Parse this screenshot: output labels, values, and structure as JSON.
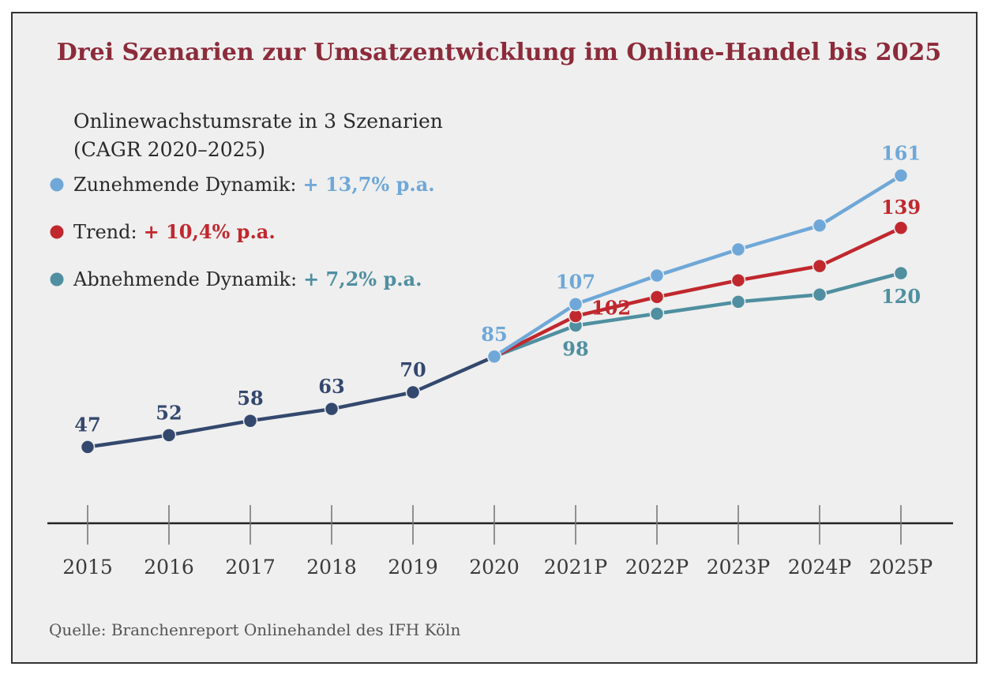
{
  "title": "Drei Szenarien zur Umsatzentwicklung im Online-Handel bis 2025",
  "subtitle_line1": "Onlinewachstumsrate in 3 Szenarien",
  "subtitle_line2": "(CAGR 2020–2025)",
  "source": "Quelle: Branchenreport Onlinehandel des IFH Köln",
  "legend": [
    {
      "label": "Zunehmende Dynamik:",
      "value": "+ 13,7% p.a.",
      "color": "#6fa8d8"
    },
    {
      "label": "Trend:",
      "value": "+ 10,4% p.a.",
      "color": "#c0282e"
    },
    {
      "label": "Abnehmende Dynamik:",
      "value": "+ 7,2% p.a.",
      "color": "#4f8fa0"
    }
  ],
  "chart_data": {
    "type": "line",
    "categories": [
      "2015",
      "2016",
      "2017",
      "2018",
      "2019",
      "2020",
      "2021P",
      "2022P",
      "2023P",
      "2024P",
      "2025P"
    ],
    "history": {
      "color": "#34486e",
      "values": [
        47,
        52,
        58,
        63,
        70,
        85
      ],
      "labels": [
        "47",
        "52",
        "58",
        "63",
        "70",
        "85"
      ]
    },
    "series": [
      {
        "name": "Zunehmende Dynamik",
        "color": "#6fa8d8",
        "values": [
          null,
          null,
          null,
          null,
          null,
          85,
          107,
          119,
          130,
          140,
          161
        ]
      },
      {
        "name": "Trend",
        "color": "#c0282e",
        "values": [
          null,
          null,
          null,
          null,
          null,
          85,
          102,
          110,
          117,
          123,
          139
        ]
      },
      {
        "name": "Abnehmende Dynamik",
        "color": "#4f8fa0",
        "values": [
          null,
          null,
          null,
          null,
          null,
          85,
          98,
          103,
          108,
          111,
          120
        ]
      }
    ],
    "data_labels": [
      {
        "index": 6,
        "text": "107",
        "color": "#6fa8d8"
      },
      {
        "index": 6,
        "text": "102",
        "color": "#c0282e"
      },
      {
        "index": 6,
        "text": "98",
        "color": "#4f8fa0"
      },
      {
        "index": 10,
        "text": "161",
        "color": "#6fa8d8"
      },
      {
        "index": 10,
        "text": "139",
        "color": "#c0282e"
      },
      {
        "index": 10,
        "text": "120",
        "color": "#4f8fa0"
      }
    ],
    "ylim": [
      15,
      185
    ],
    "grid": false
  }
}
